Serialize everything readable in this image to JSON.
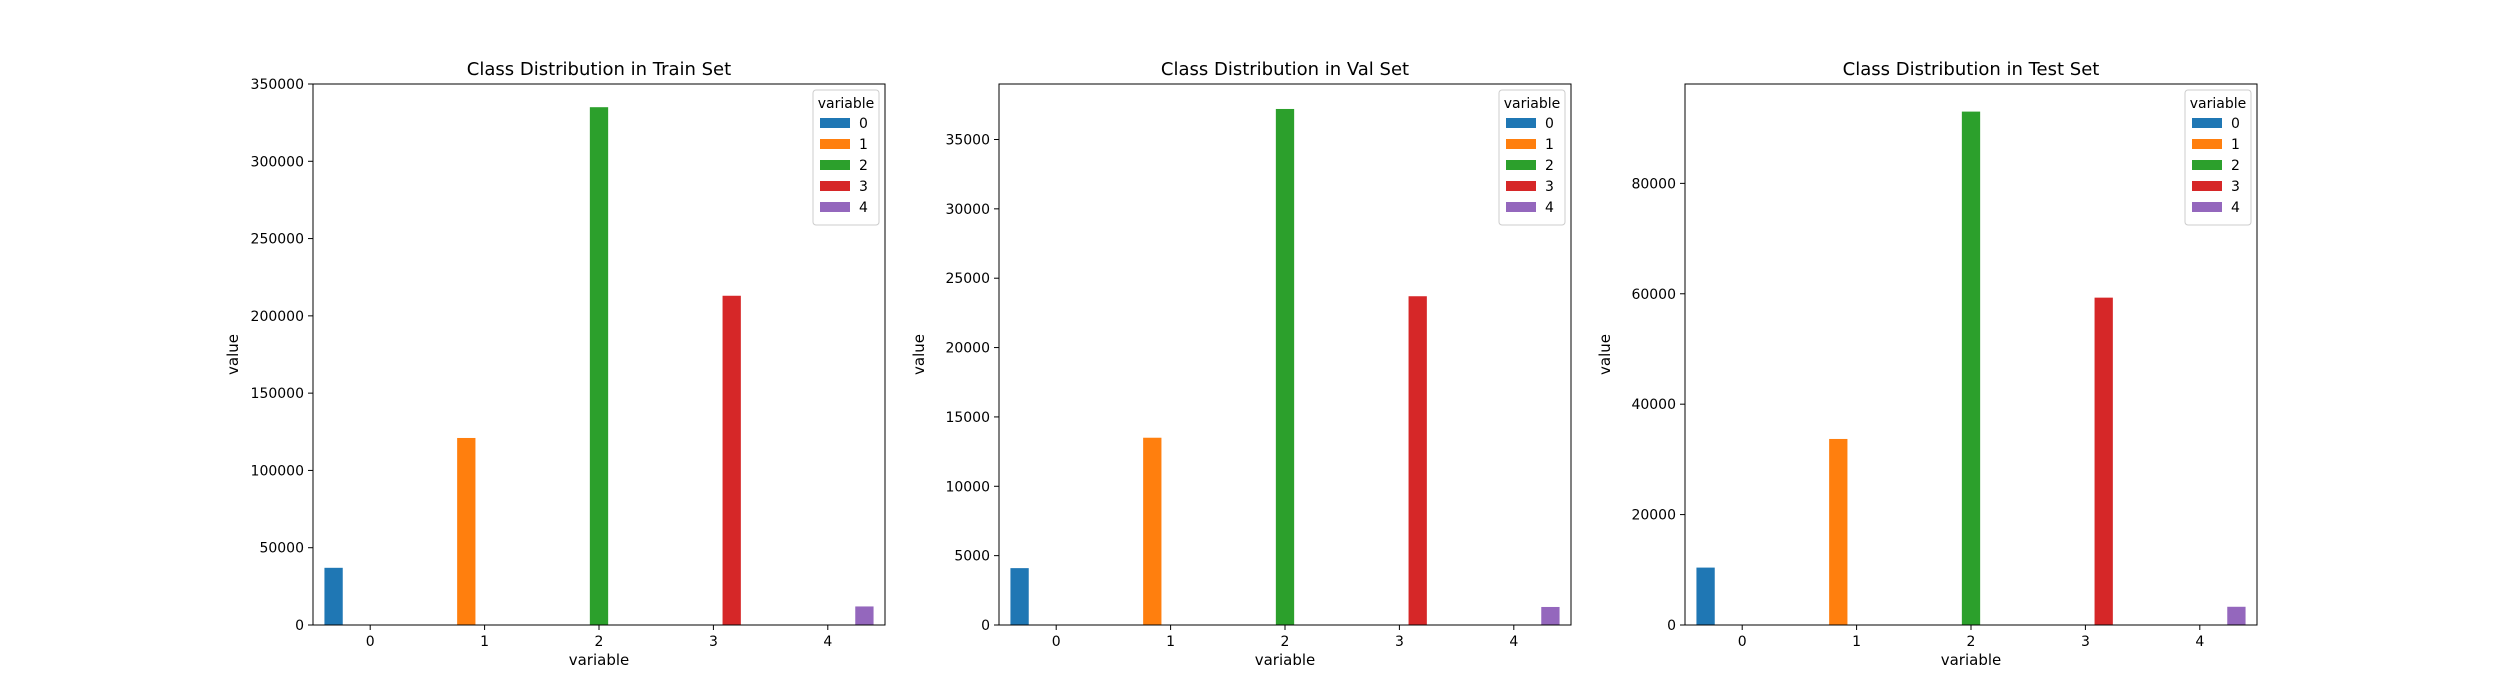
{
  "chart_data": [
    {
      "type": "bar",
      "title": "Class Distribution in Train Set",
      "xlabel": "variable",
      "ylabel": "value",
      "categories": [
        "0",
        "1",
        "2",
        "3",
        "4"
      ],
      "ylim": [
        0,
        350000
      ],
      "yticks": [
        0,
        50000,
        100000,
        150000,
        200000,
        250000,
        300000,
        350000
      ],
      "grid": false,
      "legend": {
        "title": "variable",
        "position": "top-right"
      },
      "series": [
        {
          "name": "0",
          "values": [
            37000,
            0,
            0,
            0,
            0
          ],
          "color": "#1f77b4"
        },
        {
          "name": "1",
          "values": [
            0,
            121000,
            0,
            0,
            0
          ],
          "color": "#ff7f0e"
        },
        {
          "name": "2",
          "values": [
            0,
            0,
            335000,
            0,
            0
          ],
          "color": "#2ca02c"
        },
        {
          "name": "3",
          "values": [
            0,
            0,
            0,
            213000,
            0
          ],
          "color": "#d62728"
        },
        {
          "name": "4",
          "values": [
            0,
            0,
            0,
            0,
            12000
          ],
          "color": "#9467bd"
        }
      ]
    },
    {
      "type": "bar",
      "title": "Class Distribution in Val Set",
      "xlabel": "variable",
      "ylabel": "value",
      "categories": [
        "0",
        "1",
        "2",
        "3",
        "4"
      ],
      "ylim": [
        0,
        39000
      ],
      "yticks": [
        0,
        5000,
        10000,
        15000,
        20000,
        25000,
        30000,
        35000
      ],
      "grid": false,
      "legend": {
        "title": "variable",
        "position": "top-right"
      },
      "series": [
        {
          "name": "0",
          "values": [
            4100,
            0,
            0,
            0,
            0
          ],
          "color": "#1f77b4"
        },
        {
          "name": "1",
          "values": [
            0,
            13500,
            0,
            0,
            0
          ],
          "color": "#ff7f0e"
        },
        {
          "name": "2",
          "values": [
            0,
            0,
            37200,
            0,
            0
          ],
          "color": "#2ca02c"
        },
        {
          "name": "3",
          "values": [
            0,
            0,
            0,
            23700,
            0
          ],
          "color": "#d62728"
        },
        {
          "name": "4",
          "values": [
            0,
            0,
            0,
            0,
            1300
          ],
          "color": "#9467bd"
        }
      ]
    },
    {
      "type": "bar",
      "title": "Class Distribution in Test Set",
      "xlabel": "variable",
      "ylabel": "value",
      "categories": [
        "0",
        "1",
        "2",
        "3",
        "4"
      ],
      "ylim": [
        0,
        98000
      ],
      "yticks": [
        0,
        20000,
        40000,
        60000,
        80000
      ],
      "grid": false,
      "legend": {
        "title": "variable",
        "position": "top-right"
      },
      "series": [
        {
          "name": "0",
          "values": [
            10400,
            0,
            0,
            0,
            0
          ],
          "color": "#1f77b4"
        },
        {
          "name": "1",
          "values": [
            0,
            33700,
            0,
            0,
            0
          ],
          "color": "#ff7f0e"
        },
        {
          "name": "2",
          "values": [
            0,
            0,
            93000,
            0,
            0
          ],
          "color": "#2ca02c"
        },
        {
          "name": "3",
          "values": [
            0,
            0,
            0,
            59300,
            0
          ],
          "color": "#d62728"
        },
        {
          "name": "4",
          "values": [
            0,
            0,
            0,
            0,
            3300
          ],
          "color": "#9467bd"
        }
      ]
    }
  ]
}
